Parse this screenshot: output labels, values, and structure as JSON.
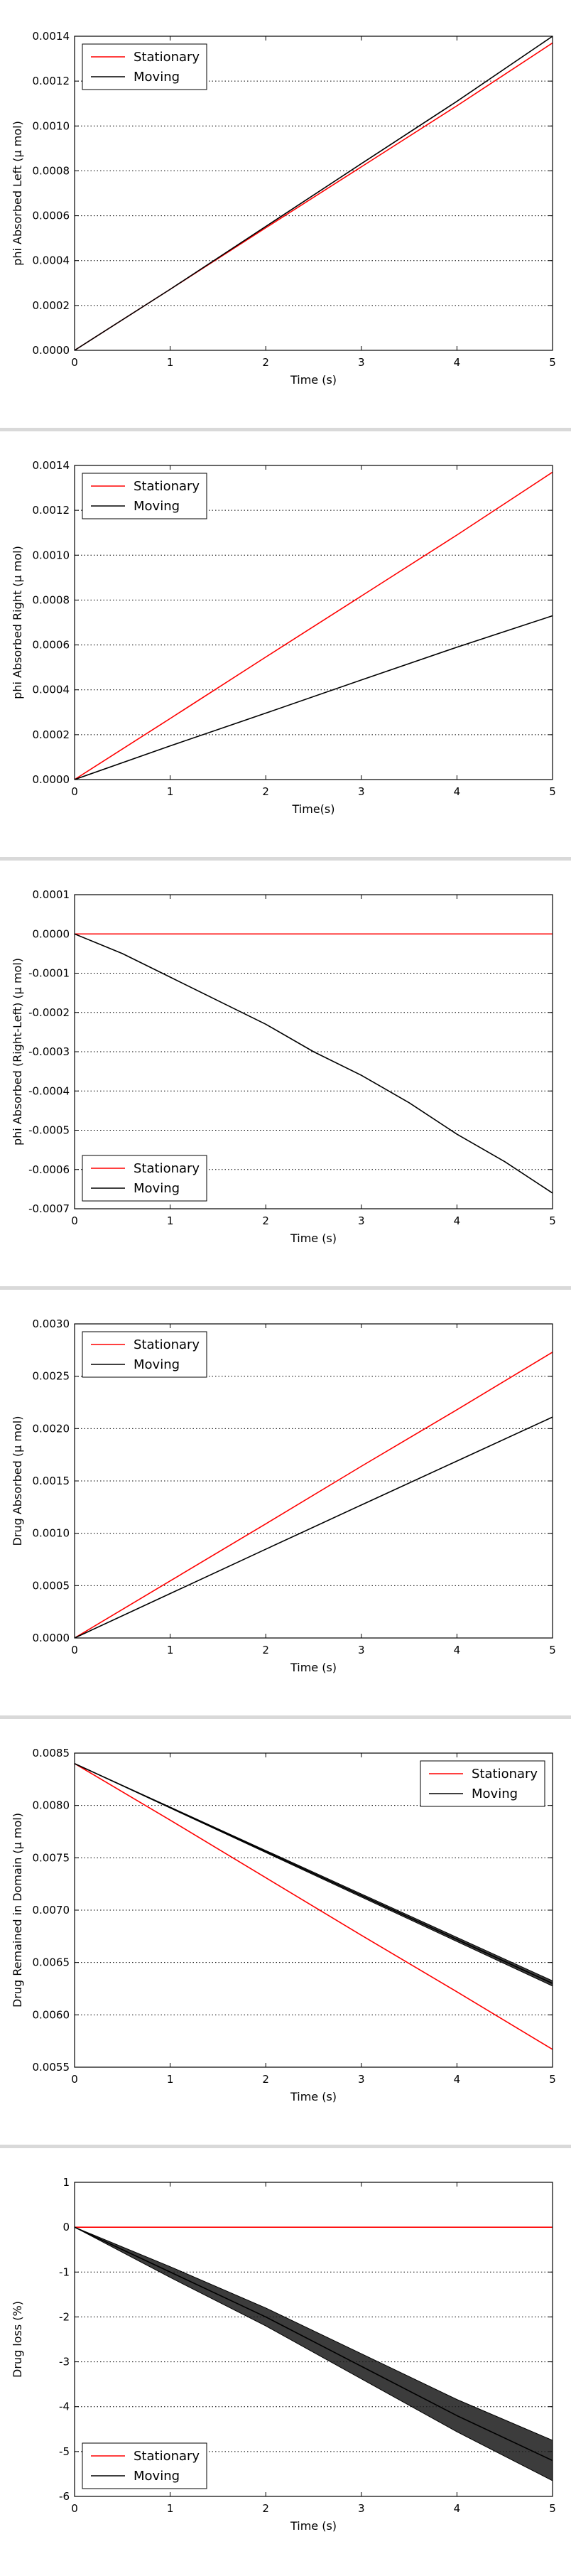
{
  "page": {
    "background": "#ffffff",
    "divider_color": "#d9d9d9"
  },
  "colors": {
    "stationary": "#ff0000",
    "moving": "#000000",
    "grid": "#000000",
    "axes": "#000000"
  },
  "chart_data": [
    {
      "type": "line",
      "xlabel": "Time (s)",
      "ylabel": "phi Absorbed Left (µ mol)",
      "xlim": [
        0,
        5
      ],
      "ylim": [
        0,
        0.0014
      ],
      "xticks": [
        "0",
        "1",
        "2",
        "3",
        "4",
        "5"
      ],
      "yticks": [
        "0.0000",
        "0.0002",
        "0.0004",
        "0.0006",
        "0.0008",
        "0.0010",
        "0.0012",
        "0.0014"
      ],
      "grid": "y-dotted",
      "legend_position": "upper-left",
      "series": [
        {
          "name": "Stationary",
          "color": "#ff0000",
          "x": [
            0,
            1,
            2,
            3,
            4,
            5
          ],
          "y": [
            0,
            0.000272,
            0.000546,
            0.000818,
            0.00109,
            0.00137
          ]
        },
        {
          "name": "Moving",
          "color": "#000000",
          "x": [
            0,
            1,
            2,
            3,
            4,
            5
          ],
          "y": [
            0,
            0.000272,
            0.000552,
            0.000832,
            0.00111,
            0.0014
          ]
        }
      ]
    },
    {
      "type": "line",
      "xlabel": "Time(s)",
      "ylabel": "phi Absorbed Right (µ mol)",
      "xlim": [
        0,
        5
      ],
      "ylim": [
        0,
        0.0014
      ],
      "xticks": [
        "0",
        "1",
        "2",
        "3",
        "4",
        "5"
      ],
      "yticks": [
        "0.0000",
        "0.0002",
        "0.0004",
        "0.0006",
        "0.0008",
        "0.0010",
        "0.0012",
        "0.0014"
      ],
      "grid": "y-dotted",
      "legend_position": "upper-left",
      "series": [
        {
          "name": "Stationary",
          "color": "#ff0000",
          "x": [
            0,
            1,
            2,
            3,
            4,
            5
          ],
          "y": [
            0,
            0.000272,
            0.000546,
            0.000818,
            0.00109,
            0.00137
          ]
        },
        {
          "name": "Moving",
          "color": "#000000",
          "x": [
            0,
            1,
            2,
            3,
            4,
            5
          ],
          "y": [
            0,
            0.00015,
            0.000296,
            0.000444,
            0.00059,
            0.00073
          ]
        }
      ]
    },
    {
      "type": "line",
      "xlabel": "Time (s)",
      "ylabel": "phi Absorbed (Right-Left) (µ mol)",
      "xlim": [
        0,
        5
      ],
      "ylim": [
        -0.0007,
        0.0001
      ],
      "xticks": [
        "0",
        "1",
        "2",
        "3",
        "4",
        "5"
      ],
      "yticks": [
        "-0.0007",
        "-0.0006",
        "-0.0005",
        "-0.0004",
        "-0.0003",
        "-0.0002",
        "-0.0001",
        "0.0000",
        "0.0001"
      ],
      "grid": "y-dotted",
      "legend_position": "lower-left",
      "series": [
        {
          "name": "Stationary",
          "color": "#ff0000",
          "x": [
            0,
            1,
            2,
            3,
            4,
            5
          ],
          "y": [
            0,
            0,
            0,
            0,
            0,
            0
          ]
        },
        {
          "name": "Moving",
          "color": "#000000",
          "x": [
            0,
            0.5,
            1,
            1.5,
            2,
            2.5,
            3,
            3.5,
            4,
            4.5,
            5
          ],
          "y": [
            0,
            -5e-05,
            -0.00011,
            -0.00017,
            -0.00023,
            -0.0003,
            -0.00036,
            -0.00043,
            -0.00051,
            -0.00058,
            -0.00066
          ]
        }
      ]
    },
    {
      "type": "line",
      "xlabel": "Time (s)",
      "ylabel": "Drug Absorbed (µ mol)",
      "xlim": [
        0,
        5
      ],
      "ylim": [
        0,
        0.003
      ],
      "xticks": [
        "0",
        "1",
        "2",
        "3",
        "4",
        "5"
      ],
      "yticks": [
        "0.0000",
        "0.0005",
        "0.0010",
        "0.0015",
        "0.0020",
        "0.0025",
        "0.0030"
      ],
      "grid": "y-dotted",
      "legend_position": "upper-left",
      "series": [
        {
          "name": "Stationary",
          "color": "#ff0000",
          "x": [
            0,
            1,
            2,
            3,
            4,
            5
          ],
          "y": [
            0,
            0.000545,
            0.00109,
            0.00164,
            0.00218,
            0.00273
          ]
        },
        {
          "name": "Moving",
          "color": "#000000",
          "x": [
            0,
            1,
            2,
            3,
            4,
            5
          ],
          "y": [
            0,
            0.000424,
            0.000848,
            0.00127,
            0.00169,
            0.00211
          ]
        }
      ]
    },
    {
      "type": "line",
      "xlabel": "Time (s)",
      "ylabel": "Drug Remained in Domain (µ mol)",
      "xlim": [
        0,
        5
      ],
      "ylim": [
        0.0055,
        0.0085
      ],
      "xticks": [
        "0",
        "1",
        "2",
        "3",
        "4",
        "5"
      ],
      "yticks": [
        "0.0055",
        "0.0060",
        "0.0065",
        "0.0070",
        "0.0075",
        "0.0080",
        "0.0085"
      ],
      "grid": "y-dotted",
      "legend_position": "upper-right",
      "series": [
        {
          "name": "Stationary",
          "color": "#ff0000",
          "x": [
            0,
            1,
            2,
            3,
            4,
            5
          ],
          "y": [
            0.0084,
            0.00786,
            0.00731,
            0.00676,
            0.00622,
            0.00567
          ]
        },
        {
          "name": "Moving",
          "color": "#000000",
          "x": [
            0,
            1,
            2,
            3,
            4,
            5
          ],
          "y": [
            0.0084,
            0.00798,
            0.00756,
            0.00714,
            0.00672,
            0.0063
          ],
          "band": [
            0,
            5e-06,
            1e-05,
            1.5e-05,
            2e-05,
            2.5e-05
          ]
        }
      ]
    },
    {
      "type": "line",
      "xlabel": "Time (s)",
      "ylabel": "Drug loss (%)",
      "xlim": [
        0,
        5
      ],
      "ylim": [
        -6,
        1
      ],
      "xticks": [
        "0",
        "1",
        "2",
        "3",
        "4",
        "5"
      ],
      "yticks": [
        "-6",
        "-5",
        "-4",
        "-3",
        "-2",
        "-1",
        "0",
        "1"
      ],
      "grid": "y-dotted",
      "legend_position": "lower-left",
      "series": [
        {
          "name": "Stationary",
          "color": "#ff0000",
          "x": [
            0,
            1,
            2,
            3,
            4,
            5
          ],
          "y": [
            0,
            0,
            0,
            0,
            0,
            0
          ]
        },
        {
          "name": "Moving",
          "color": "#000000",
          "x": [
            0,
            1,
            2,
            3,
            4,
            5
          ],
          "y": [
            0,
            -1.0,
            -2.0,
            -3.1,
            -4.2,
            -5.2
          ],
          "band": [
            0,
            0.12,
            0.2,
            0.28,
            0.36,
            0.45
          ]
        }
      ]
    }
  ]
}
